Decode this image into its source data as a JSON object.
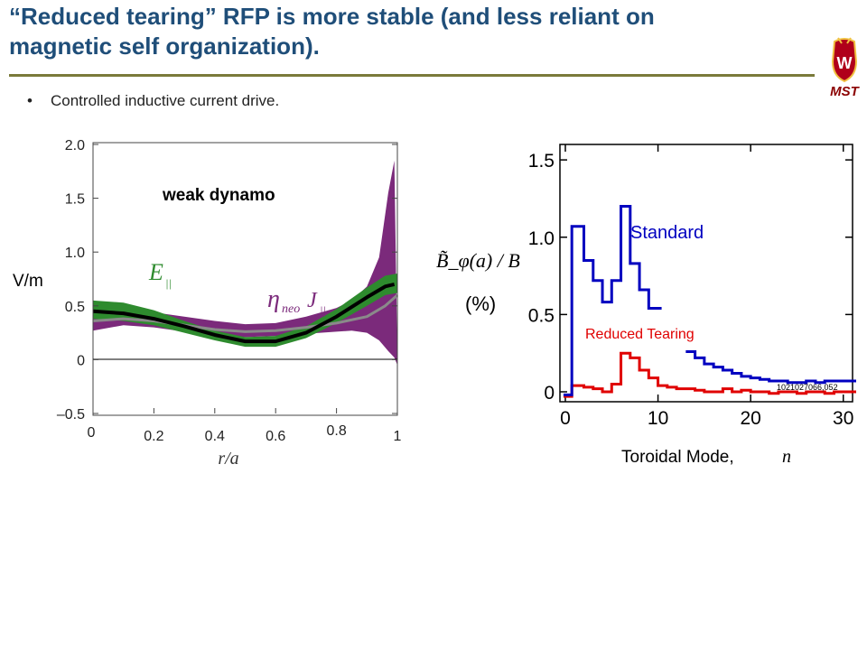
{
  "slide": {
    "title_line1": "“Reduced tearing” RFP is more stable (and less reliant on",
    "title_line2": "magnetic self organization).",
    "bullet": "Controlled inductive current drive.",
    "logo_letter": "W",
    "logo_text": "MST",
    "title_color": "#1f4e79"
  },
  "chart_data": [
    {
      "type": "area",
      "title": "weak dynamo",
      "ylabel": "V/m",
      "xlabel": "r/a",
      "xlim": [
        0,
        1
      ],
      "ylim": [
        -0.5,
        2.0
      ],
      "x_ticks": [
        "0",
        "0.2",
        "0.4",
        "0.6",
        "0.8",
        "1"
      ],
      "y_ticks": [
        "–0.5",
        "0",
        "0.5",
        "1.0",
        "1.5",
        "2.0"
      ],
      "labels": {
        "e_par": "E",
        "e_par_sub": "||",
        "eta": "η",
        "eta_sub": "neo",
        "j": "J",
        "j_sub": "||"
      },
      "colors": {
        "e_par": "#2e8b2e",
        "eta_j": "#7b2a7b",
        "mean": "#000000",
        "grey": "#8a8a8a"
      },
      "series": [
        {
          "name": "η_neo J_||",
          "x": [
            0.0,
            0.1,
            0.2,
            0.3,
            0.4,
            0.5,
            0.6,
            0.7,
            0.8,
            0.85,
            0.9,
            0.94,
            0.97,
            0.99,
            1.0
          ],
          "upper": [
            0.47,
            0.48,
            0.44,
            0.4,
            0.36,
            0.33,
            0.34,
            0.4,
            0.48,
            0.55,
            0.68,
            0.95,
            1.55,
            1.85,
            0.0
          ],
          "lower": [
            0.27,
            0.32,
            0.3,
            0.26,
            0.22,
            0.21,
            0.22,
            0.24,
            0.26,
            0.27,
            0.25,
            0.18,
            0.08,
            0.02,
            -0.05
          ]
        },
        {
          "name": "E_||",
          "x": [
            0.0,
            0.1,
            0.2,
            0.3,
            0.4,
            0.5,
            0.6,
            0.7,
            0.8,
            0.9,
            0.96,
            1.0
          ],
          "upper": [
            0.55,
            0.53,
            0.46,
            0.36,
            0.27,
            0.21,
            0.22,
            0.31,
            0.47,
            0.67,
            0.78,
            0.8
          ],
          "lower": [
            0.38,
            0.36,
            0.32,
            0.25,
            0.18,
            0.12,
            0.12,
            0.2,
            0.34,
            0.5,
            0.6,
            0.62
          ]
        },
        {
          "name": "E_|| mean",
          "x": [
            0.0,
            0.1,
            0.2,
            0.3,
            0.4,
            0.5,
            0.6,
            0.7,
            0.8,
            0.9,
            0.96,
            0.99
          ],
          "values": [
            0.45,
            0.43,
            0.38,
            0.31,
            0.23,
            0.17,
            0.17,
            0.25,
            0.4,
            0.58,
            0.68,
            0.7
          ]
        },
        {
          "name": "η_neo J_|| mean",
          "x": [
            0.0,
            0.1,
            0.2,
            0.3,
            0.4,
            0.5,
            0.6,
            0.7,
            0.8,
            0.9,
            0.96,
            1.0
          ],
          "values": [
            0.36,
            0.38,
            0.36,
            0.32,
            0.28,
            0.26,
            0.27,
            0.3,
            0.34,
            0.4,
            0.5,
            0.6
          ]
        }
      ]
    },
    {
      "type": "line",
      "xlabel": "Toroidal Mode,",
      "xlabel_var": "n",
      "ylabel": "B̃_φ(a) / B",
      "ylabel_unit": "(%)",
      "xlim": [
        0,
        31
      ],
      "ylim": [
        0,
        1.6
      ],
      "x_ticks": [
        "0",
        "10",
        "20",
        "30"
      ],
      "y_ticks": [
        "0",
        "0.5",
        "1.0",
        "1.5"
      ],
      "shot_label": "1021027066,052",
      "series": [
        {
          "name": "Standard",
          "color": "#0000c0",
          "x": [
            -0.2,
            0.7,
            1,
            2,
            3,
            4,
            5,
            6,
            7,
            8,
            9,
            10
          ],
          "values": [
            -0.02,
            1.07,
            1.07,
            0.85,
            0.72,
            0.58,
            0.72,
            1.2,
            0.83,
            0.66,
            0.54,
            0.54
          ],
          "x2": [
            13,
            14,
            15,
            16,
            17,
            18,
            19,
            20,
            21,
            22,
            23,
            24,
            25,
            26,
            27,
            28,
            29,
            30,
            31
          ],
          "values2": [
            0.26,
            0.22,
            0.18,
            0.16,
            0.14,
            0.12,
            0.1,
            0.09,
            0.08,
            0.07,
            0.07,
            0.06,
            0.06,
            0.07,
            0.06,
            0.07,
            0.07,
            0.07,
            0.07
          ]
        },
        {
          "name": "Reduced Tearing",
          "color": "#e00000",
          "x": [
            -0.2,
            0.7,
            1,
            2,
            3,
            4,
            5,
            6,
            7,
            8,
            9,
            10,
            11,
            12,
            13,
            14,
            15,
            16,
            17,
            18,
            19,
            20,
            21,
            22,
            23,
            24,
            25,
            26,
            27,
            28,
            29,
            30,
            31
          ],
          "values": [
            -0.03,
            0.04,
            0.04,
            0.03,
            0.02,
            0.0,
            0.05,
            0.25,
            0.22,
            0.14,
            0.09,
            0.04,
            0.03,
            0.02,
            0.02,
            0.01,
            0.0,
            0.0,
            0.02,
            0.0,
            0.01,
            0.0,
            0.0,
            -0.01,
            0.0,
            0.0,
            -0.01,
            0.0,
            0.0,
            -0.01,
            0.0,
            0.0,
            0.0
          ]
        }
      ]
    }
  ]
}
